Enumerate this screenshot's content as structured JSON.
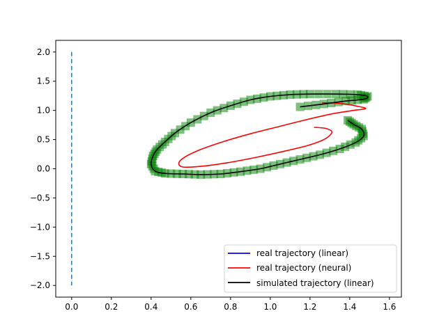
{
  "chart_data": {
    "type": "line",
    "xlim": [
      -0.08,
      1.66
    ],
    "ylim": [
      -2.2,
      2.2
    ],
    "xticks": [
      "0.0",
      "0.2",
      "0.4",
      "0.6",
      "0.8",
      "1.0",
      "1.2",
      "1.4",
      "1.6"
    ],
    "yticks": [
      "2.0",
      "1.5",
      "1.0",
      "0.5",
      "0.0",
      "−0.5",
      "−1.0",
      "−1.5",
      "−2.0"
    ],
    "grid": false,
    "legend_position": "bottom-right",
    "legend": [
      {
        "label": "real trajectory (linear)",
        "color": "#0000ff"
      },
      {
        "label": "real trajectory (neural)",
        "color": "#ff0000"
      },
      {
        "label": "simulated trajectory (linear)",
        "color": "#000000"
      }
    ],
    "series": [
      {
        "name": "real trajectory (linear)",
        "color": "#0000ff",
        "style": "solid",
        "points": []
      },
      {
        "name": "real trajectory (neural)",
        "color": "#ff0000",
        "style": "solid",
        "points": [
          [
            1.22,
            0.71
          ],
          [
            1.28,
            0.69
          ],
          [
            1.31,
            0.63
          ],
          [
            1.28,
            0.52
          ],
          [
            1.2,
            0.41
          ],
          [
            1.07,
            0.3
          ],
          [
            0.92,
            0.19
          ],
          [
            0.78,
            0.1
          ],
          [
            0.65,
            0.04
          ],
          [
            0.56,
            0.03
          ],
          [
            0.54,
            0.1
          ],
          [
            0.57,
            0.2
          ],
          [
            0.65,
            0.33
          ],
          [
            0.76,
            0.46
          ],
          [
            0.9,
            0.6
          ],
          [
            1.04,
            0.72
          ],
          [
            1.18,
            0.84
          ],
          [
            1.31,
            0.94
          ],
          [
            1.42,
            1.0
          ],
          [
            1.48,
            1.03
          ],
          [
            1.44,
            1.07
          ],
          [
            1.35,
            1.12
          ],
          [
            1.26,
            1.13
          ]
        ]
      },
      {
        "name": "simulated trajectory (linear)",
        "color": "#000000",
        "style": "solid",
        "points": [
          [
            1.15,
            1.06
          ],
          [
            1.27,
            1.11
          ],
          [
            1.38,
            1.16
          ],
          [
            1.47,
            1.19
          ],
          [
            1.49,
            1.24
          ],
          [
            1.44,
            1.27
          ],
          [
            1.33,
            1.28
          ],
          [
            1.2,
            1.28
          ],
          [
            1.1,
            1.27
          ],
          [
            1.0,
            1.24
          ],
          [
            0.9,
            1.18
          ],
          [
            0.8,
            1.08
          ],
          [
            0.7,
            0.96
          ],
          [
            0.6,
            0.79
          ],
          [
            0.52,
            0.61
          ],
          [
            0.47,
            0.46
          ],
          [
            0.43,
            0.33
          ],
          [
            0.41,
            0.22
          ],
          [
            0.4,
            0.08
          ],
          [
            0.42,
            -0.04
          ],
          [
            0.47,
            -0.08
          ],
          [
            0.56,
            -0.09
          ],
          [
            0.65,
            -0.1
          ],
          [
            0.75,
            -0.09
          ],
          [
            0.85,
            -0.05
          ],
          [
            0.95,
            0.0
          ],
          [
            1.05,
            0.08
          ],
          [
            1.15,
            0.16
          ],
          [
            1.25,
            0.24
          ],
          [
            1.35,
            0.34
          ],
          [
            1.43,
            0.45
          ],
          [
            1.47,
            0.56
          ],
          [
            1.46,
            0.68
          ],
          [
            1.42,
            0.76
          ],
          [
            1.39,
            0.83
          ]
        ]
      },
      {
        "name": "green markers",
        "color": "#008000",
        "style": "markers",
        "points": [
          [
            1.15,
            1.06
          ],
          [
            1.27,
            1.11
          ],
          [
            1.38,
            1.16
          ],
          [
            1.47,
            1.19
          ],
          [
            1.49,
            1.24
          ],
          [
            1.44,
            1.27
          ],
          [
            1.33,
            1.28
          ],
          [
            1.2,
            1.28
          ],
          [
            1.1,
            1.27
          ],
          [
            1.0,
            1.24
          ],
          [
            0.9,
            1.18
          ],
          [
            0.8,
            1.08
          ],
          [
            0.7,
            0.96
          ],
          [
            0.6,
            0.79
          ],
          [
            0.52,
            0.61
          ],
          [
            0.47,
            0.46
          ],
          [
            0.43,
            0.33
          ],
          [
            0.41,
            0.22
          ],
          [
            0.4,
            0.08
          ],
          [
            0.42,
            -0.04
          ],
          [
            0.47,
            -0.08
          ],
          [
            0.56,
            -0.09
          ],
          [
            0.65,
            -0.1
          ],
          [
            0.75,
            -0.09
          ],
          [
            0.85,
            -0.05
          ],
          [
            0.95,
            0.0
          ],
          [
            1.05,
            0.08
          ],
          [
            1.15,
            0.16
          ],
          [
            1.25,
            0.24
          ],
          [
            1.35,
            0.34
          ],
          [
            1.43,
            0.45
          ],
          [
            1.47,
            0.56
          ],
          [
            1.46,
            0.68
          ],
          [
            1.42,
            0.76
          ],
          [
            1.39,
            0.83
          ]
        ]
      },
      {
        "name": "dashed vertical",
        "color": "#1f77b4",
        "style": "dashed",
        "points": [
          [
            0.0,
            2.0
          ],
          [
            0.0,
            -2.0
          ]
        ]
      }
    ]
  }
}
